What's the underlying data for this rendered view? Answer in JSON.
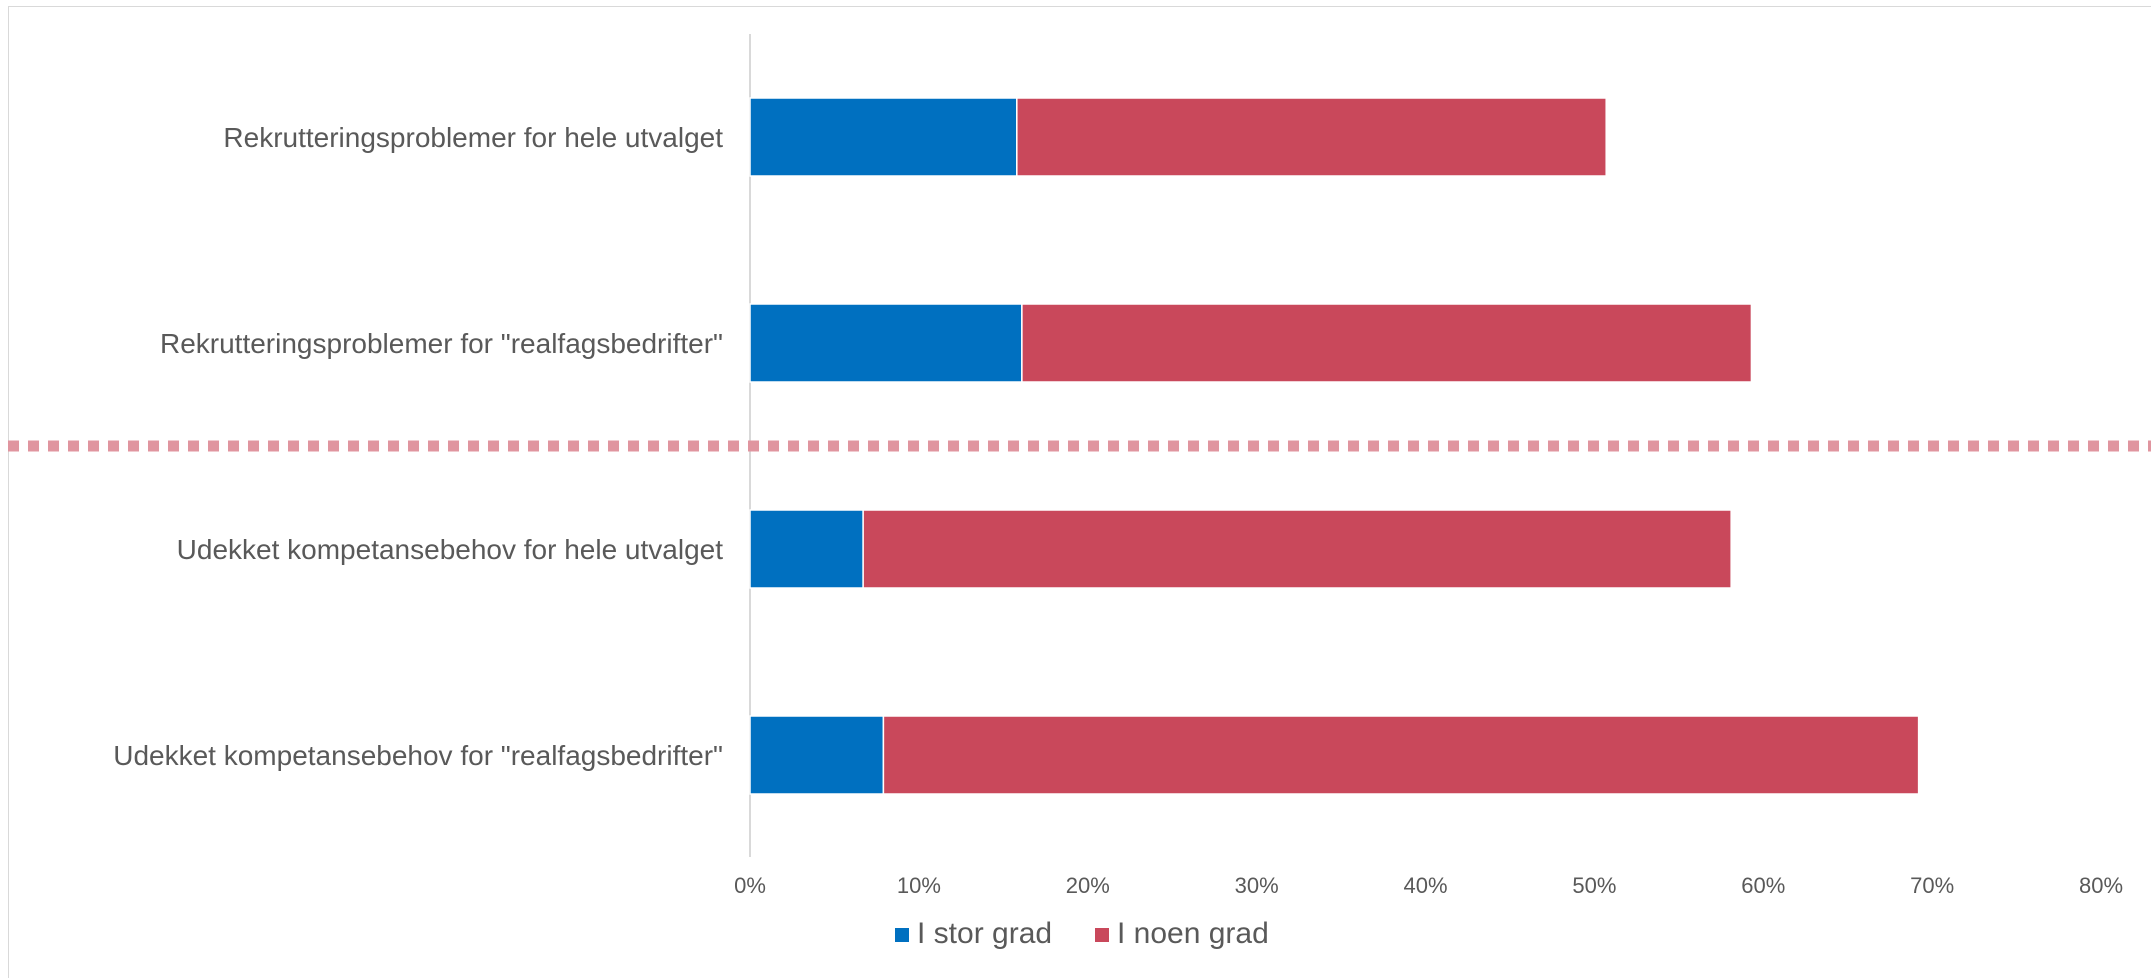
{
  "chart_data": {
    "type": "bar",
    "orientation": "horizontal",
    "stacked": true,
    "categories": [
      "Rekrutteringsproblemer for hele utvalget",
      "Rekrutteringsproblemer for \"realfagsbedrifter\"",
      "Udekket kompetansebehov for hele utvalget",
      "Udekket kompetansebehov for \"realfagsbedrifter\""
    ],
    "series": [
      {
        "name": "I stor grad",
        "color": "#0070C0",
        "values": [
          15.8,
          16.1,
          6.7,
          7.9
        ]
      },
      {
        "name": "I noen grad",
        "color": "#C9485B",
        "values": [
          34.9,
          43.2,
          51.4,
          61.3
        ]
      }
    ],
    "xlim": [
      0,
      80
    ],
    "x_ticks": [
      0,
      10,
      20,
      30,
      40,
      50,
      60,
      70,
      80
    ],
    "x_tick_labels": [
      "0%",
      "10%",
      "20%",
      "30%",
      "40%",
      "50%",
      "60%",
      "70%",
      "80%"
    ],
    "grid": false,
    "legend": "bottom",
    "separator": {
      "style": "dashed",
      "color": "#E0959F",
      "after_category_index": 1
    }
  }
}
